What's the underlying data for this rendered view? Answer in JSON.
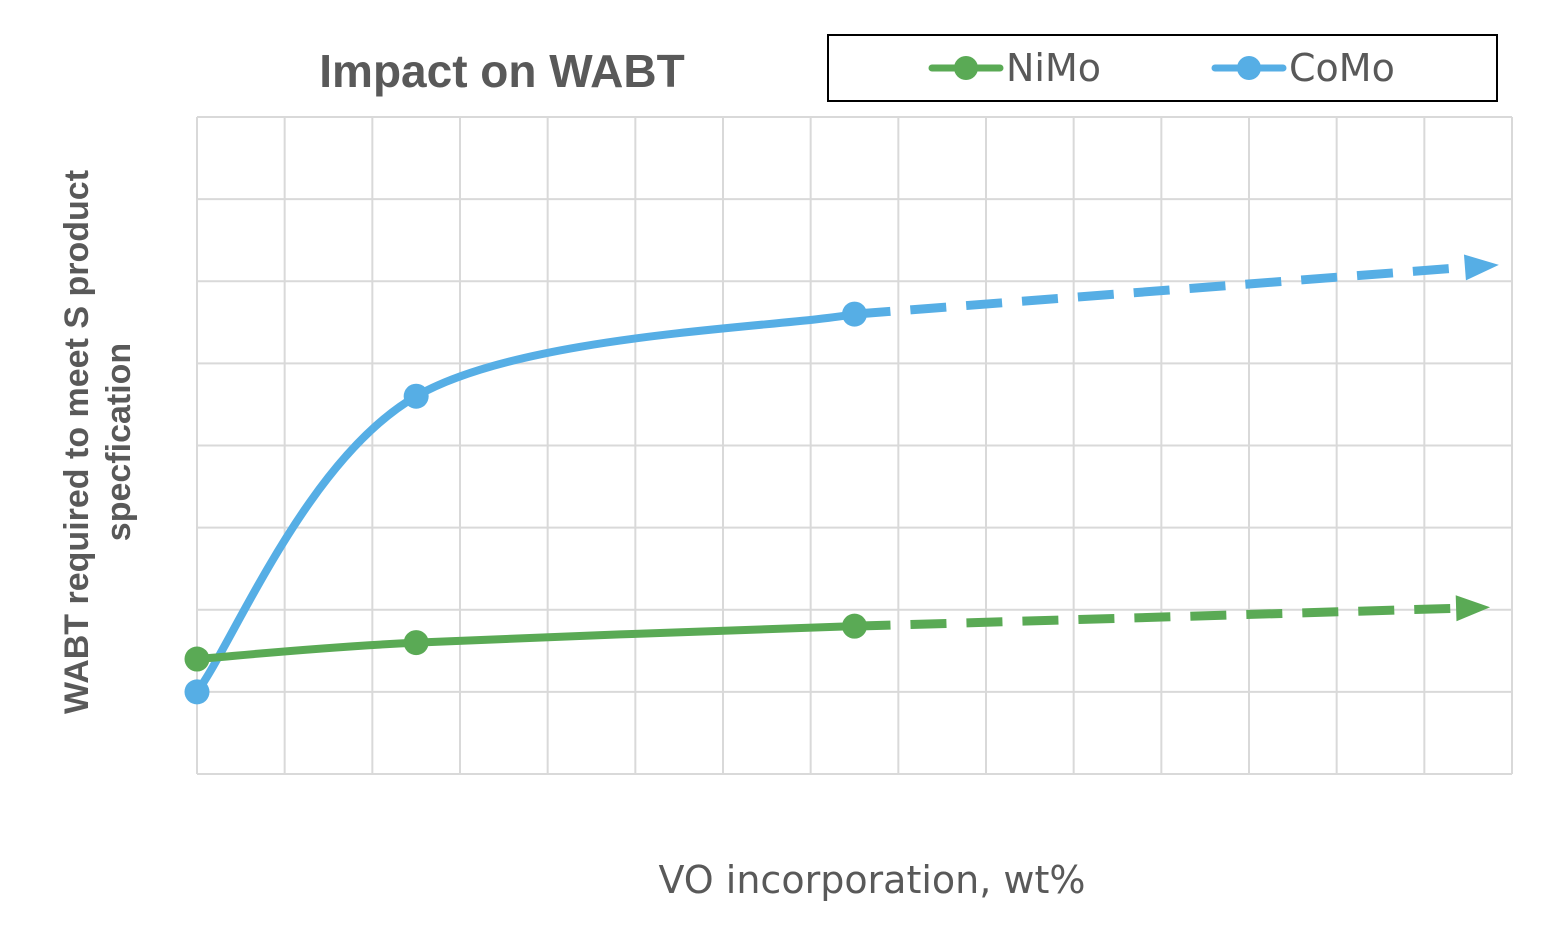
{
  "chart_data": {
    "type": "line",
    "title": "Impact on WABT",
    "xlabel": "VO incorporation, wt%",
    "ylabel_lines": [
      "WABT required to meet S product",
      "specfication"
    ],
    "grid": true,
    "legend_position": "top-right",
    "xlim": [
      0,
      15
    ],
    "ylim": [
      0,
      8
    ],
    "series": [
      {
        "name": "NiMo",
        "color": "#5aaa55",
        "x": [
          0,
          2.5,
          7.5
        ],
        "y": [
          1.4,
          1.6,
          1.8
        ],
        "extrapolation_end": [
          14.75,
          2.03
        ]
      },
      {
        "name": "CoMo",
        "color": "#56aee5",
        "x": [
          0,
          2.5,
          7.5
        ],
        "y": [
          1.0,
          4.6,
          5.6
        ],
        "extrapolation_end": [
          14.85,
          6.2
        ]
      }
    ]
  }
}
